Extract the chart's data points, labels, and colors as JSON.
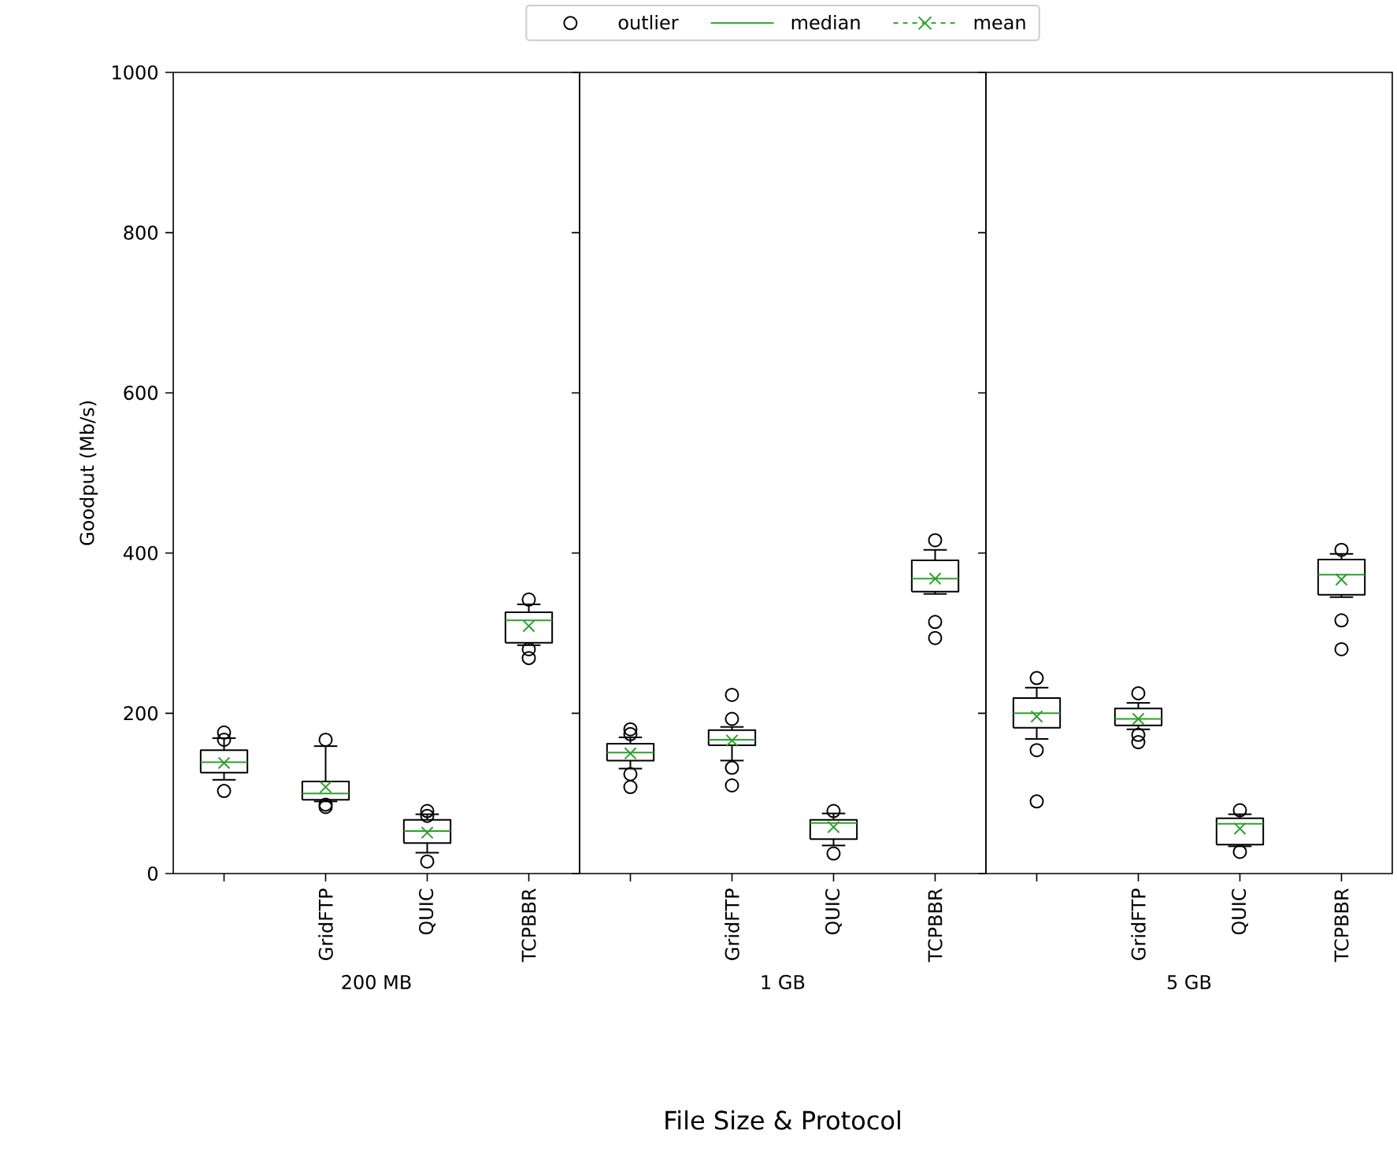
{
  "chart_data": [
    {
      "type": "box",
      "categories": [
        null,
        "GridFTP",
        "QUIC",
        "TCPBBR"
      ],
      "xlabel": "200 MB",
      "ylabel": "Goodput (Mb/s)",
      "ylim": [
        0,
        1000
      ],
      "yticks": [
        0,
        200,
        400,
        600,
        800,
        1000
      ],
      "legend": "top",
      "annotations": [
        "outlier",
        "median"
      ],
      "series": [
        {
          "name": "mean",
          "type": "scatter",
          "color": "#2ca02c",
          "marker": "cross",
          "line_style": "dashed",
          "values": [
            138,
            108,
            51,
            309
          ]
        }
      ],
      "boxes": [
        {
          "low": 117,
          "q1": 126,
          "median": 139,
          "q3": 154,
          "high": 169,
          "outliers": [
            103,
            167,
            176
          ]
        },
        {
          "low": 90,
          "q1": 92,
          "median": 100,
          "q3": 115,
          "high": 159,
          "outliers": [
            83,
            86,
            167
          ]
        },
        {
          "low": 26,
          "q1": 38,
          "median": 53,
          "q3": 67,
          "high": 74,
          "outliers": [
            15,
            72,
            78
          ]
        },
        {
          "low": 285,
          "q1": 288,
          "median": 316,
          "q3": 326,
          "high": 336,
          "outliers": [
            269,
            280,
            342
          ]
        }
      ]
    },
    {
      "type": "box",
      "categories": [
        null,
        "GridFTP",
        "QUIC",
        "TCPBBR"
      ],
      "xlabel": "1 GB",
      "ylim": [
        0,
        1000
      ],
      "yticks": [
        0,
        200,
        400,
        600,
        800,
        1000
      ],
      "tick_labels": "x",
      "annotations": [
        "File Size & Protocol"
      ],
      "series": [
        {
          "type": "scatter",
          "color": "#2ca02c",
          "marker": "cross",
          "values": [
            150,
            166,
            58,
            368
          ]
        }
      ],
      "boxes": [
        {
          "low": 131,
          "q1": 141,
          "median": 151,
          "q3": 162,
          "high": 170,
          "outliers": [
            108,
            124,
            174,
            180
          ]
        },
        {
          "low": 141,
          "q1": 160,
          "median": 167,
          "q3": 179,
          "high": 183,
          "outliers": [
            110,
            132,
            193,
            223
          ]
        },
        {
          "low": 35,
          "q1": 43,
          "median": 63,
          "q3": 67,
          "high": 75,
          "outliers": [
            25,
            78
          ]
        },
        {
          "low": 349,
          "q1": 352,
          "median": 368,
          "q3": 391,
          "high": 404,
          "outliers": [
            294,
            314,
            416
          ]
        }
      ]
    },
    {
      "type": "box",
      "categories": [
        null,
        "GridFTP",
        "QUIC",
        "TCPBBR"
      ],
      "xlabel": "5 GB",
      "ylim": [
        0,
        1000
      ],
      "yticks": [
        0,
        200,
        400,
        600,
        800,
        1000
      ],
      "tick_labels": "x",
      "series": [
        {
          "type": "scatter",
          "color": "#2ca02c",
          "marker": "cross",
          "values": [
            196,
            193,
            56,
            367
          ]
        }
      ],
      "boxes": [
        {
          "low": 168,
          "q1": 182,
          "median": 200,
          "q3": 219,
          "high": 232,
          "outliers": [
            90,
            154,
            244
          ]
        },
        {
          "low": 180,
          "q1": 185,
          "median": 193,
          "q3": 206,
          "high": 213,
          "outliers": [
            164,
            173,
            225
          ]
        },
        {
          "low": 34,
          "q1": 36,
          "median": 62,
          "q3": 69,
          "high": 74,
          "outliers": [
            27,
            79
          ]
        },
        {
          "low": 345,
          "q1": 348,
          "median": 373,
          "q3": 392,
          "high": 399,
          "outliers": [
            280,
            316,
            404
          ]
        }
      ]
    }
  ]
}
